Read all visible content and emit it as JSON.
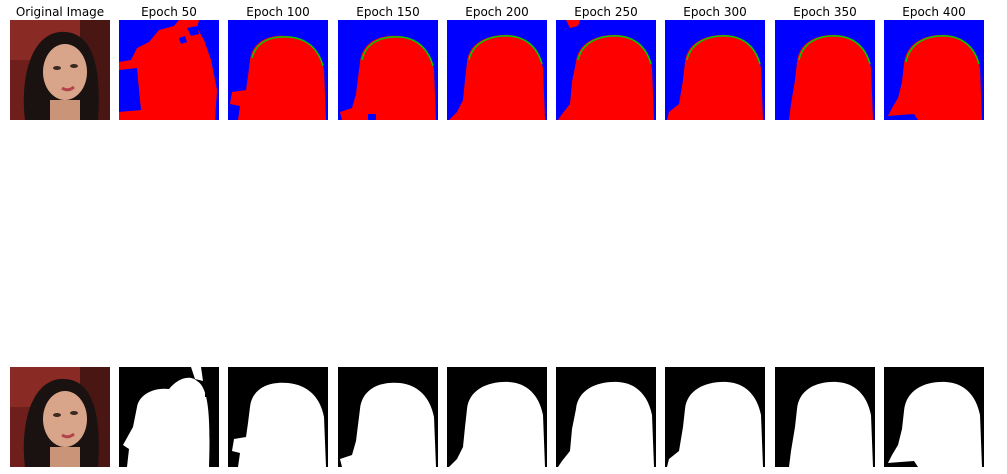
{
  "figure": {
    "columns": [
      {
        "id": "orig",
        "title": "Original Image"
      },
      {
        "id": "e50",
        "title": "Epoch 50"
      },
      {
        "id": "e100",
        "title": "Epoch 100"
      },
      {
        "id": "e150",
        "title": "Epoch 150"
      },
      {
        "id": "e200",
        "title": "Epoch 200"
      },
      {
        "id": "e250",
        "title": "Epoch 250"
      },
      {
        "id": "e300",
        "title": "Epoch 300"
      },
      {
        "id": "e350",
        "title": "Epoch 350"
      },
      {
        "id": "e400",
        "title": "Epoch 400"
      }
    ]
  },
  "colors": {
    "background_class": "#0000ff",
    "foreground_class": "#ff0000",
    "boundary_class": "#00cc00",
    "mask_background": "#000000",
    "mask_foreground": "#ffffff"
  }
}
